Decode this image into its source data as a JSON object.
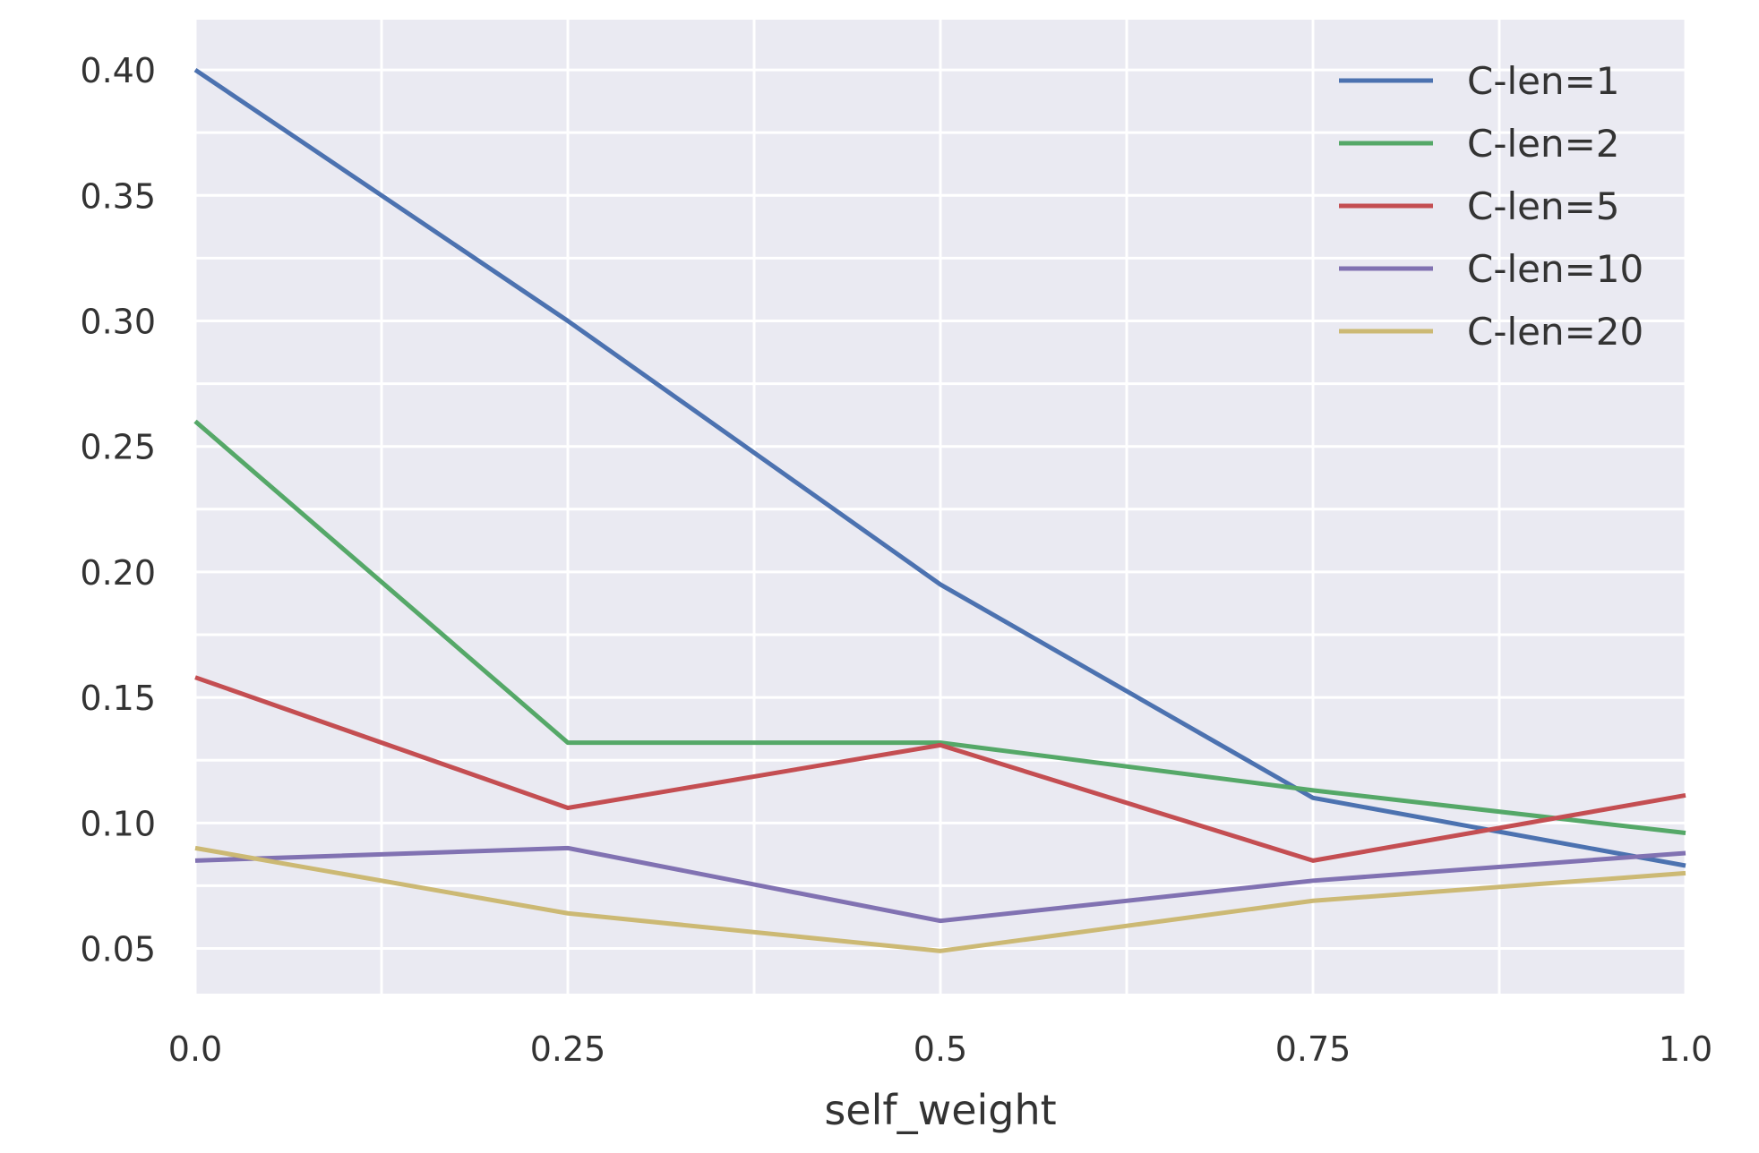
{
  "chart_data": {
    "type": "line",
    "title": "",
    "xlabel": "self_weight",
    "ylabel": "",
    "x": [
      0.0,
      0.25,
      0.5,
      0.75,
      1.0
    ],
    "x_tick_labels": [
      "0.0",
      "0.25",
      "0.5",
      "0.75",
      "1.0"
    ],
    "y_ticks": [
      0.05,
      0.1,
      0.15,
      0.2,
      0.25,
      0.3,
      0.35,
      0.4
    ],
    "y_tick_labels": [
      "0.05",
      "0.10",
      "0.15",
      "0.20",
      "0.25",
      "0.30",
      "0.35",
      "0.40"
    ],
    "xlim": [
      0.0,
      1.0
    ],
    "ylim": [
      0.032,
      0.42
    ],
    "grid": true,
    "legend_position": "top-right",
    "background_color": "#EAEAF2",
    "grid_color": "#FFFFFF",
    "series": [
      {
        "name": "C-len=1",
        "color": "#4C72B0",
        "values": [
          0.4,
          0.3,
          0.195,
          0.11,
          0.083
        ]
      },
      {
        "name": "C-len=2",
        "color": "#55A868",
        "values": [
          0.26,
          0.132,
          0.132,
          0.113,
          0.096
        ]
      },
      {
        "name": "C-len=5",
        "color": "#C44E52",
        "values": [
          0.158,
          0.106,
          0.131,
          0.085,
          0.111
        ]
      },
      {
        "name": "C-len=10",
        "color": "#8172B2",
        "values": [
          0.085,
          0.09,
          0.061,
          0.077,
          0.088
        ]
      },
      {
        "name": "C-len=20",
        "color": "#CCB974",
        "values": [
          0.09,
          0.064,
          0.049,
          0.069,
          0.08
        ]
      }
    ]
  }
}
